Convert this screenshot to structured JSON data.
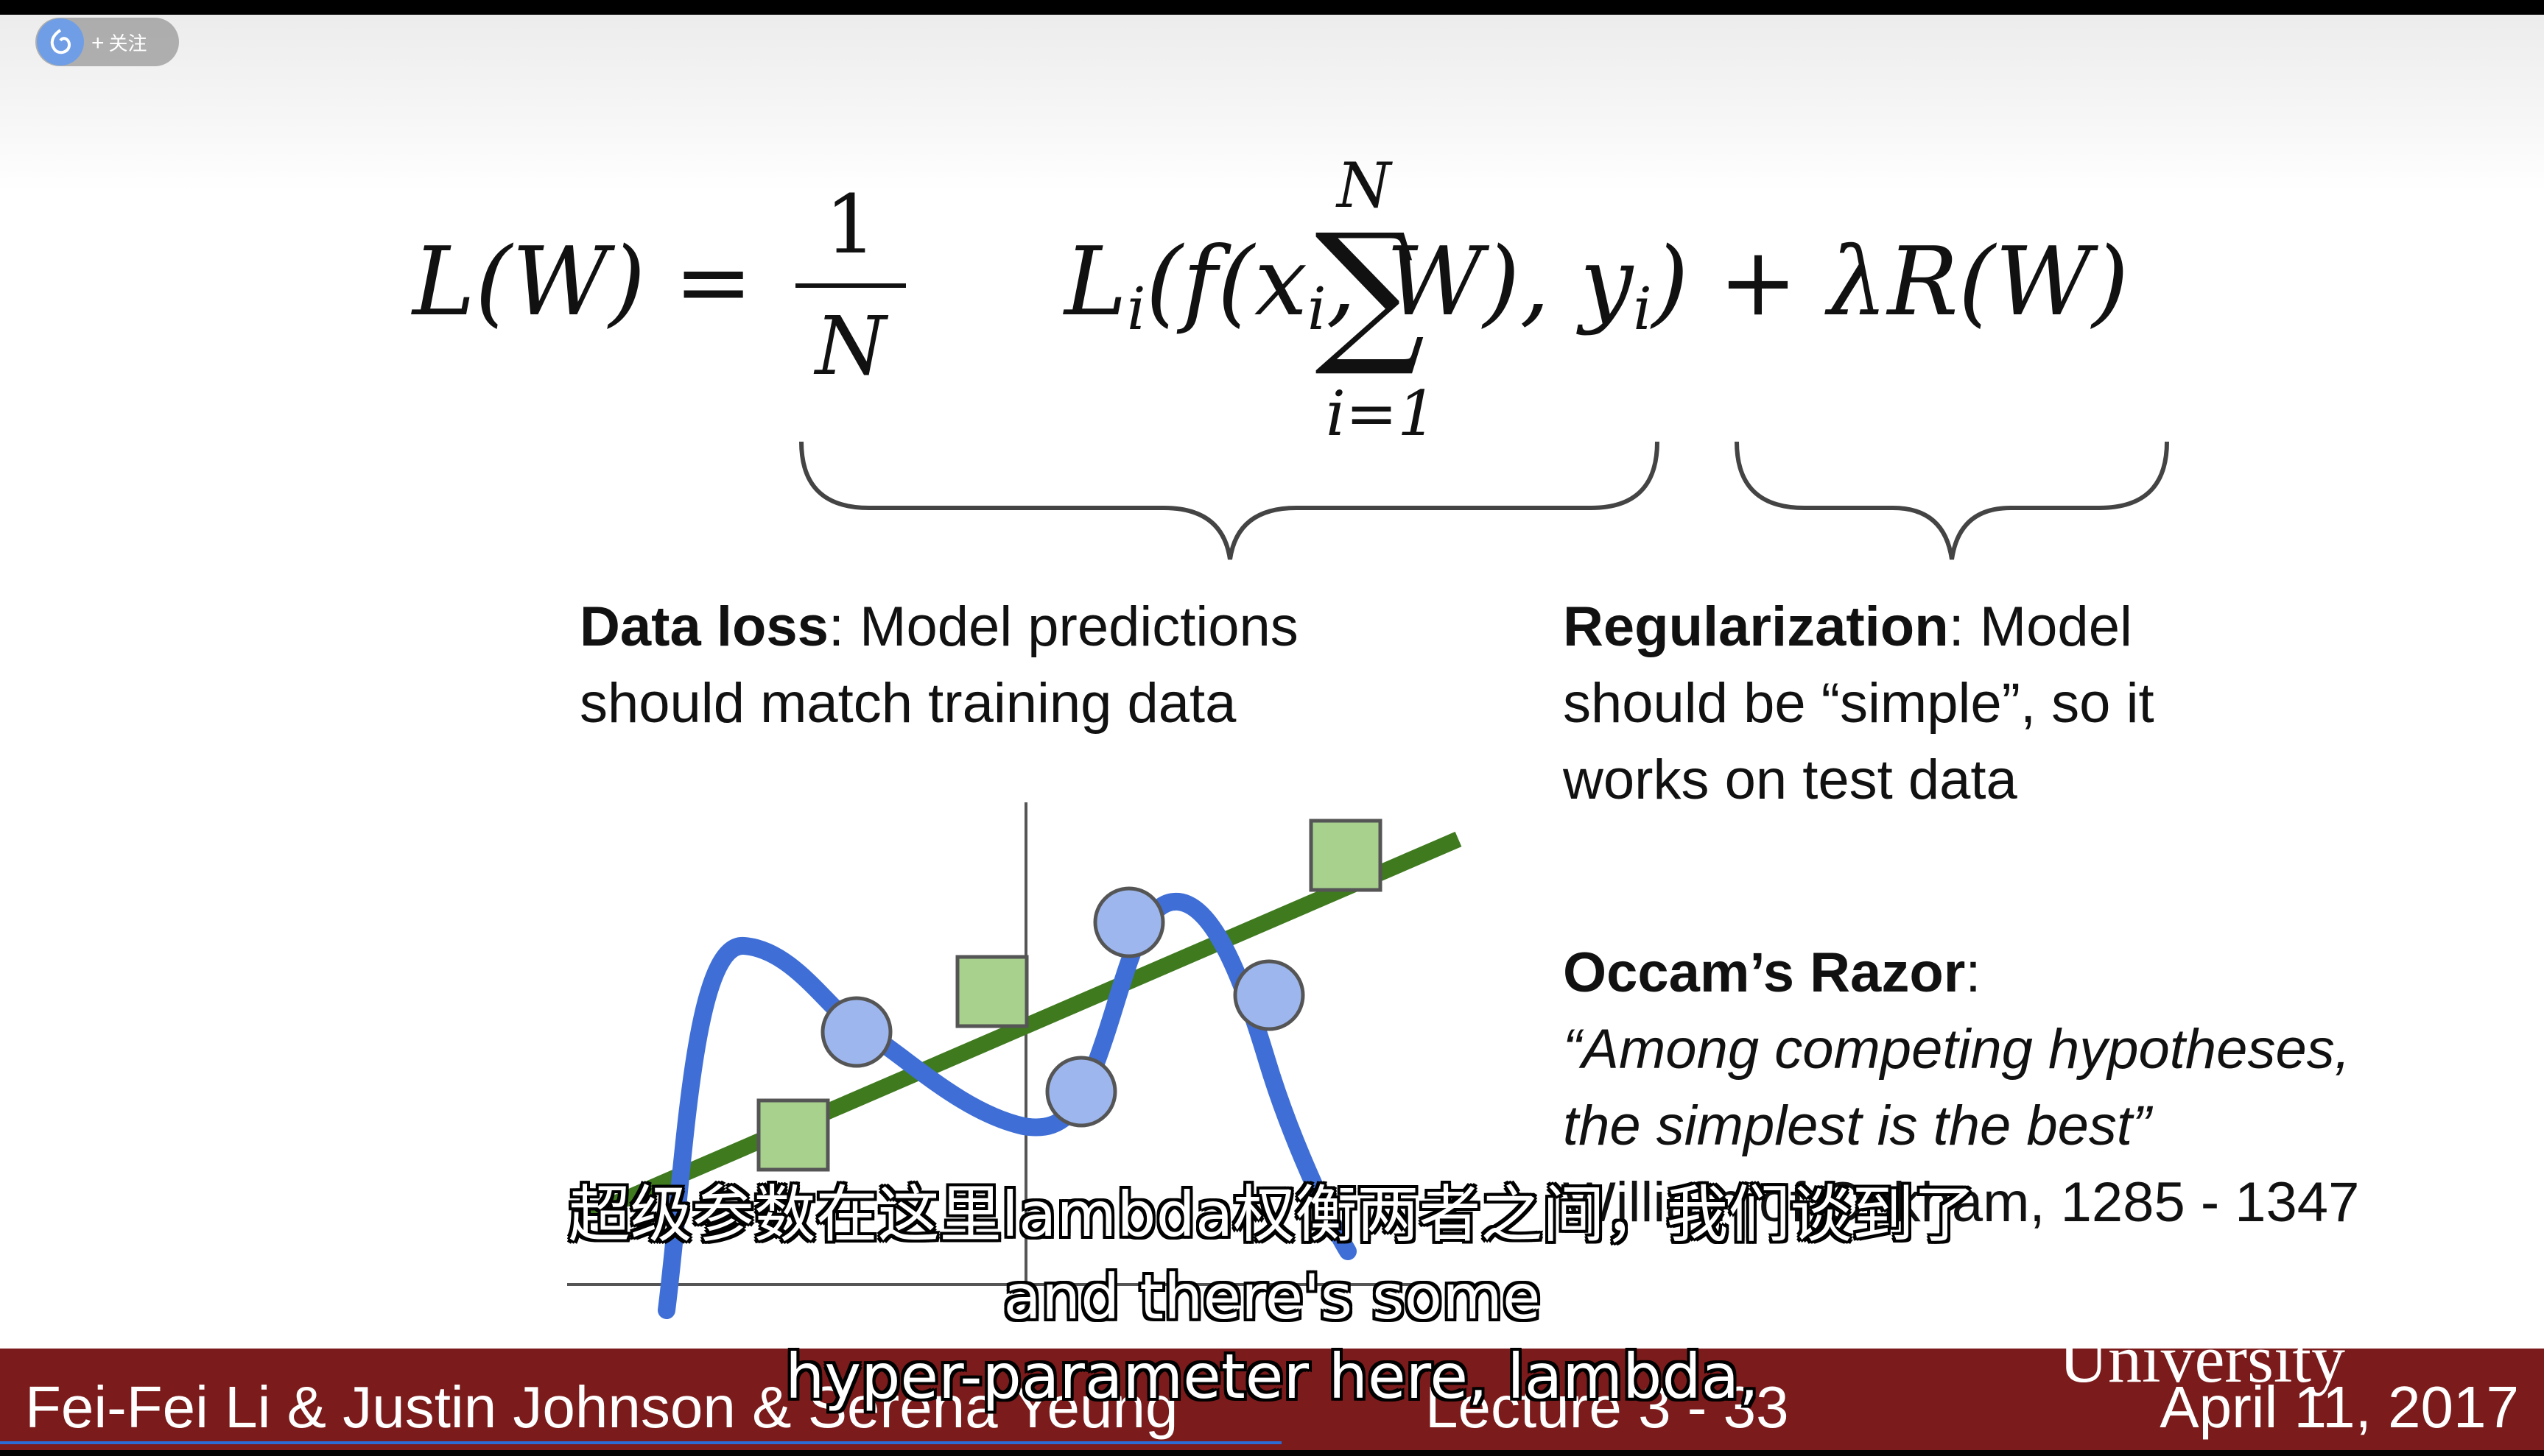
{
  "follow": {
    "label": "关注"
  },
  "slide": {
    "formula": {
      "lhs": "L(W)",
      "equals": "=",
      "frac_num": "1",
      "frac_den": "N",
      "sum_top": "N",
      "sum_bottom": "i=1",
      "body_prefix": "L",
      "body_sub_i": "i",
      "body_mid": "(f(x",
      "body_sub_i2": "i",
      "body_mid2": ", W), y",
      "body_sub_i3": "i",
      "body_end": ") + λR(W)"
    },
    "data_loss": {
      "heading": "Data loss",
      "line1": ": Model predictions",
      "line2": "should match training data"
    },
    "regularization": {
      "heading": "Regularization",
      "line1": ": Model",
      "line2": "should be “simple”, so it",
      "line3": "works on test data"
    },
    "occam": {
      "heading": "Occam’s Razor",
      "colon": ":",
      "quote1": "“Among competing hypotheses,",
      "quote2": "the simplest is the best”",
      "attribution": "William of Ockham, 1285 - 1347"
    },
    "chart_data": {
      "type": "scatter",
      "circles_count": 5,
      "squares_count": 4,
      "colors": {
        "curve": "#3f6fd6",
        "line": "#3f7a1f",
        "circle": "#9db7ee",
        "square": "#a9d18e"
      }
    }
  },
  "footer": {
    "university": "University",
    "authors": "Fei-Fei Li & Justin Johnson & Serena Yeung",
    "lecture": "Lecture 3 - 33",
    "date": "April 11, 2017"
  },
  "subtitles": {
    "zh": "超级参数在这里lambda权衡两者之间，我们谈到了",
    "en1": "and there's some",
    "en2": "hyper-parameter here, lambda,"
  }
}
